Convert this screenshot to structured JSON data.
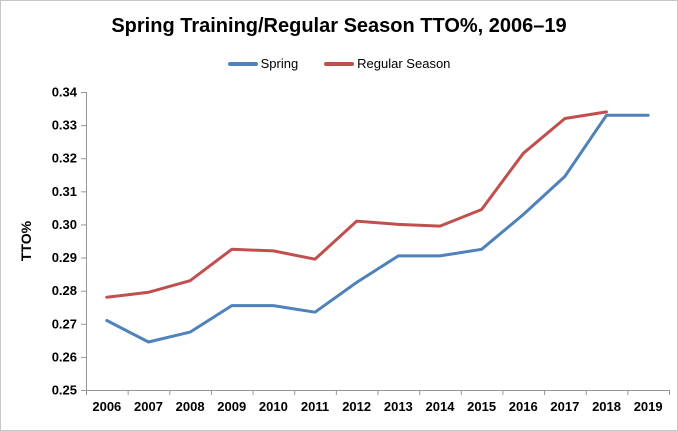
{
  "chart_data": {
    "type": "line",
    "title": "Spring Training/Regular Season TTO%, 2006–19",
    "xlabel": "",
    "ylabel": "TTO%",
    "categories": [
      "2006",
      "2007",
      "2008",
      "2009",
      "2010",
      "2011",
      "2012",
      "2013",
      "2014",
      "2015",
      "2016",
      "2017",
      "2018",
      "2019"
    ],
    "series": [
      {
        "name": "Spring",
        "color": "#4F81BD",
        "values": [
          0.271,
          0.2645,
          0.2675,
          0.2755,
          0.2755,
          0.2735,
          0.2825,
          0.2905,
          0.2905,
          0.2925,
          0.303,
          0.3145,
          0.333,
          0.333
        ]
      },
      {
        "name": "Regular Season",
        "color": "#C0504D",
        "values": [
          0.278,
          0.2795,
          0.283,
          0.2925,
          0.292,
          0.2895,
          0.301,
          0.3,
          0.2995,
          0.3045,
          0.3215,
          0.332,
          0.334,
          null
        ]
      }
    ],
    "ylim": [
      0.25,
      0.34
    ],
    "y_ticks": [
      "0.25",
      "0.26",
      "0.27",
      "0.28",
      "0.29",
      "0.30",
      "0.31",
      "0.32",
      "0.33",
      "0.34"
    ],
    "grid": false,
    "legend_position": "top-center",
    "axis_color": "#969696",
    "text_color": "#000000",
    "background_color": "#ffffff"
  }
}
